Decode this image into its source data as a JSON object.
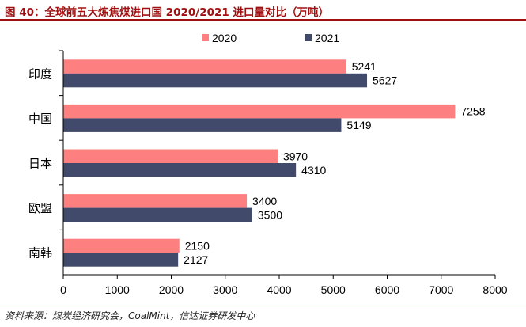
{
  "title": "图 40：全球前五大炼焦煤进口国 2020/2021 进口量对比（万吨）",
  "source": "资料来源：煤炭经济研究会，CoalMint，信达证券研发中心",
  "chart_data": {
    "type": "bar",
    "orientation": "horizontal",
    "categories": [
      "印度",
      "中国",
      "日本",
      "欧盟",
      "南韩"
    ],
    "series": [
      {
        "name": "2020",
        "values": [
          5241,
          7258,
          3970,
          3400,
          2150
        ],
        "color": "#fe7f7f"
      },
      {
        "name": "2021",
        "values": [
          5627,
          5149,
          4310,
          3500,
          2127
        ],
        "color": "#414a6b"
      }
    ],
    "xlim": [
      0,
      8000
    ],
    "xticks": [
      "0",
      "1000",
      "2000",
      "3000",
      "4000",
      "5000",
      "6000",
      "7000",
      "8000"
    ],
    "legend_position": "top",
    "grid": false,
    "data_labels": true
  }
}
